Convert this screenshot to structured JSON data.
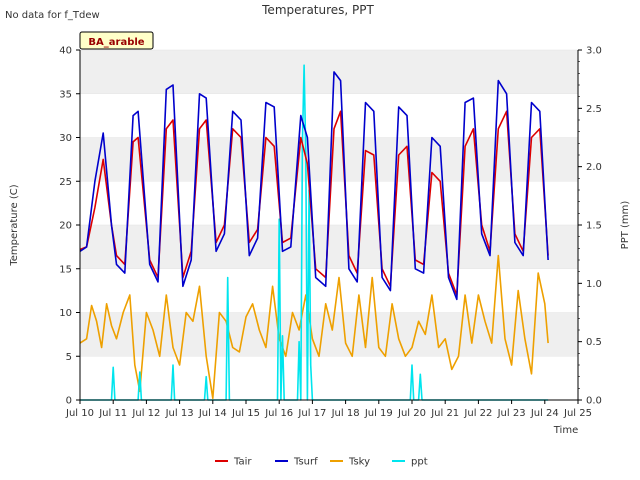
{
  "chart_data": {
    "type": "line",
    "title": "Temperatures, PPT",
    "note": "No data for f_Tdew",
    "site_label": "BA_arable",
    "xlabel": "Time",
    "ylabel_left": "Temperature (C)",
    "ylabel_right": "PPT (mm)",
    "xlim": [
      10,
      25
    ],
    "ylim_left": [
      0,
      40
    ],
    "ylim_right": [
      0,
      3.0
    ],
    "x_ticks": [
      10,
      11,
      12,
      13,
      14,
      15,
      16,
      17,
      18,
      19,
      20,
      21,
      22,
      23,
      24,
      25
    ],
    "x_tick_labels": [
      "Jul 10",
      "Jul 11",
      "Jul 12",
      "Jul 13",
      "Jul 14",
      "Jul 15",
      "Jul 16",
      "Jul 17",
      "Jul 18",
      "Jul 19",
      "Jul 20",
      "Jul 21",
      "Jul 22",
      "Jul 23",
      "Jul 24",
      "Jul 25"
    ],
    "y_ticks_left": [
      0,
      5,
      10,
      15,
      20,
      25,
      30,
      35,
      40
    ],
    "y_tick_labels_left": [
      "0",
      "5",
      "10",
      "15",
      "20",
      "25",
      "30",
      "35",
      "40"
    ],
    "y_ticks_right": [
      0.0,
      0.5,
      1.0,
      1.5,
      2.0,
      2.5,
      3.0
    ],
    "y_tick_labels_right": [
      "0.0",
      "0.5",
      "1.0",
      "1.5",
      "2.0",
      "2.5",
      "3.0"
    ],
    "grid": "horizontal bands",
    "legend_position": "bottom",
    "colors": {
      "band": "#efefef",
      "axis": "#000000"
    },
    "series": [
      {
        "name": "Tair",
        "color": "#dd0000",
        "axis": "left",
        "x": [
          10.0,
          10.2,
          10.45,
          10.7,
          10.95,
          11.1,
          11.35,
          11.6,
          11.75,
          12.1,
          12.35,
          12.6,
          12.8,
          13.1,
          13.35,
          13.6,
          13.8,
          14.1,
          14.35,
          14.6,
          14.85,
          15.1,
          15.35,
          15.6,
          15.85,
          16.1,
          16.35,
          16.65,
          16.85,
          17.1,
          17.4,
          17.65,
          17.85,
          18.1,
          18.35,
          18.6,
          18.85,
          19.1,
          19.35,
          19.6,
          19.85,
          20.1,
          20.35,
          20.6,
          20.85,
          21.1,
          21.35,
          21.6,
          21.85,
          22.1,
          22.35,
          22.6,
          22.85,
          23.1,
          23.35,
          23.6,
          23.85,
          24.1
        ],
        "y": [
          17.2,
          17.5,
          22.0,
          27.5,
          20.0,
          16.5,
          15.5,
          29.5,
          30.0,
          16.0,
          14.0,
          31.0,
          32.0,
          14.0,
          17.0,
          31.0,
          32.0,
          18.0,
          20.0,
          31.0,
          30.0,
          18.0,
          19.5,
          30.0,
          29.0,
          18.0,
          18.5,
          30.0,
          27.0,
          15.0,
          14.0,
          31.0,
          33.0,
          16.5,
          14.5,
          28.5,
          28.0,
          15.0,
          13.0,
          28.0,
          29.0,
          16.0,
          15.5,
          26.0,
          25.0,
          14.5,
          12.0,
          29.0,
          31.0,
          20.0,
          17.0,
          31.0,
          33.0,
          19.0,
          17.0,
          30.0,
          31.0,
          16.5
        ]
      },
      {
        "name": "Tsurf",
        "color": "#0000cc",
        "axis": "left",
        "x": [
          10.0,
          10.2,
          10.45,
          10.7,
          10.95,
          11.1,
          11.35,
          11.6,
          11.75,
          12.1,
          12.35,
          12.6,
          12.8,
          13.1,
          13.35,
          13.6,
          13.8,
          14.1,
          14.35,
          14.6,
          14.85,
          15.1,
          15.35,
          15.6,
          15.85,
          16.1,
          16.35,
          16.65,
          16.85,
          17.1,
          17.4,
          17.65,
          17.85,
          18.1,
          18.35,
          18.6,
          18.85,
          19.1,
          19.35,
          19.6,
          19.85,
          20.1,
          20.35,
          20.6,
          20.85,
          21.1,
          21.35,
          21.6,
          21.85,
          22.1,
          22.35,
          22.6,
          22.85,
          23.1,
          23.35,
          23.6,
          23.85,
          24.1
        ],
        "y": [
          17.0,
          17.5,
          25.0,
          30.5,
          20.0,
          15.5,
          14.5,
          32.5,
          33.0,
          15.5,
          13.5,
          35.5,
          36.0,
          13.0,
          16.0,
          35.0,
          34.5,
          17.0,
          19.0,
          33.0,
          32.0,
          16.5,
          18.5,
          34.0,
          33.5,
          17.0,
          17.5,
          32.5,
          30.0,
          14.0,
          13.0,
          37.5,
          36.5,
          15.0,
          13.5,
          34.0,
          33.0,
          14.0,
          12.5,
          33.5,
          32.5,
          15.0,
          14.5,
          30.0,
          29.0,
          14.0,
          11.5,
          34.0,
          34.5,
          19.0,
          16.5,
          36.5,
          35.0,
          18.0,
          16.5,
          34.0,
          33.0,
          16.0
        ]
      },
      {
        "name": "Tsky",
        "color": "#eea000",
        "axis": "left",
        "x": [
          10.0,
          10.2,
          10.35,
          10.5,
          10.65,
          10.8,
          10.95,
          11.1,
          11.3,
          11.5,
          11.65,
          11.8,
          12.0,
          12.2,
          12.4,
          12.6,
          12.8,
          13.0,
          13.2,
          13.4,
          13.6,
          13.8,
          14.0,
          14.2,
          14.4,
          14.6,
          14.8,
          15.0,
          15.2,
          15.4,
          15.6,
          15.8,
          16.0,
          16.2,
          16.4,
          16.6,
          16.8,
          17.0,
          17.2,
          17.4,
          17.6,
          17.8,
          18.0,
          18.2,
          18.4,
          18.6,
          18.8,
          19.0,
          19.2,
          19.4,
          19.6,
          19.8,
          20.0,
          20.2,
          20.4,
          20.6,
          20.8,
          21.0,
          21.2,
          21.4,
          21.6,
          21.8,
          22.0,
          22.2,
          22.4,
          22.6,
          22.8,
          23.0,
          23.2,
          23.4,
          23.6,
          23.8,
          24.0,
          24.1
        ],
        "y": [
          6.5,
          7.0,
          10.8,
          9.0,
          6.0,
          11.0,
          8.5,
          7.0,
          10.0,
          12.0,
          4.0,
          1.0,
          10.0,
          8.0,
          5.0,
          12.0,
          6.0,
          4.0,
          10.0,
          9.0,
          13.0,
          5.0,
          0.2,
          10.0,
          9.0,
          6.0,
          5.5,
          9.5,
          11.0,
          8.0,
          6.0,
          13.0,
          7.0,
          5.0,
          10.0,
          8.0,
          12.0,
          7.0,
          5.0,
          11.0,
          8.0,
          14.0,
          6.5,
          5.0,
          12.0,
          6.0,
          14.0,
          6.0,
          5.0,
          11.0,
          7.0,
          5.0,
          6.0,
          9.0,
          7.5,
          12.0,
          6.0,
          7.0,
          3.5,
          5.0,
          12.0,
          6.5,
          12.0,
          9.0,
          6.5,
          16.5,
          7.0,
          4.0,
          12.5,
          7.0,
          3.0,
          14.5,
          11.0,
          6.5
        ]
      },
      {
        "name": "ppt",
        "color": "#00e5ee",
        "axis": "right",
        "x": [
          10.0,
          10.95,
          11.0,
          11.05,
          11.75,
          11.8,
          11.85,
          12.75,
          12.8,
          12.85,
          13.75,
          13.8,
          13.85,
          14.4,
          14.45,
          14.5,
          15.95,
          16.0,
          16.05,
          16.1,
          16.15,
          16.55,
          16.6,
          16.65,
          16.7,
          16.75,
          16.8,
          16.85,
          16.9,
          16.95,
          17.0,
          19.95,
          20.0,
          20.05,
          20.2,
          20.25,
          20.3,
          24.1
        ],
        "y": [
          0,
          0,
          0.28,
          0,
          0,
          0.24,
          0,
          0,
          0.3,
          0,
          0,
          0.2,
          0,
          0,
          1.05,
          0,
          0,
          1.55,
          0,
          0.55,
          0,
          0,
          0.5,
          0,
          2.2,
          2.87,
          2.1,
          0,
          1.8,
          0.3,
          0,
          0,
          0.3,
          0,
          0,
          0.22,
          0,
          0
        ]
      }
    ]
  }
}
